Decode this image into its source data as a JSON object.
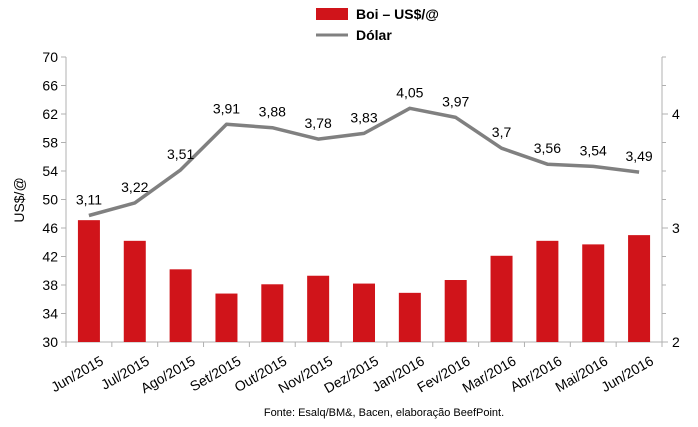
{
  "chart_data": {
    "type": "bar+line",
    "categories": [
      "Jun/2015",
      "Jul/2015",
      "Ago/2015",
      "Set/2015",
      "Out/2015",
      "Nov/2015",
      "Dez/2015",
      "Jan/2016",
      "Fev/2016",
      "Mar/2016",
      "Abr/2016",
      "Mai/2016",
      "Jun/2016"
    ],
    "series": [
      {
        "name": "Boi – US$/@",
        "type": "bar",
        "axis": "left",
        "color": "#d0141a",
        "values": [
          47.1,
          44.2,
          40.2,
          36.8,
          38.1,
          39.3,
          38.2,
          36.9,
          38.7,
          42.1,
          44.2,
          43.7,
          45.0
        ]
      },
      {
        "name": "Dólar",
        "type": "line",
        "axis": "right",
        "color": "#808080",
        "values": [
          3.11,
          3.22,
          3.51,
          3.91,
          3.88,
          3.78,
          3.83,
          4.05,
          3.97,
          3.7,
          3.56,
          3.54,
          3.49
        ],
        "labels": [
          "3,11",
          "3,22",
          "3,51",
          "3,91",
          "3,88",
          "3,78",
          "3,83",
          "4,05",
          "3,97",
          "3,7",
          "3,56",
          "3,54",
          "3,49"
        ]
      }
    ],
    "ylabel": "US$/@",
    "ylim": [
      30,
      70
    ],
    "yticks": [
      "30",
      "34",
      "38",
      "42",
      "46",
      "50",
      "54",
      "58",
      "62",
      "66",
      "70"
    ],
    "y2lim": [
      2,
      4.5
    ],
    "y2ticks": [
      "2",
      "3",
      "4"
    ],
    "legend": "top-center",
    "grid": false,
    "source": "Fonte: Esalq/BM&, Bacen, elaboração BeefPoint."
  }
}
